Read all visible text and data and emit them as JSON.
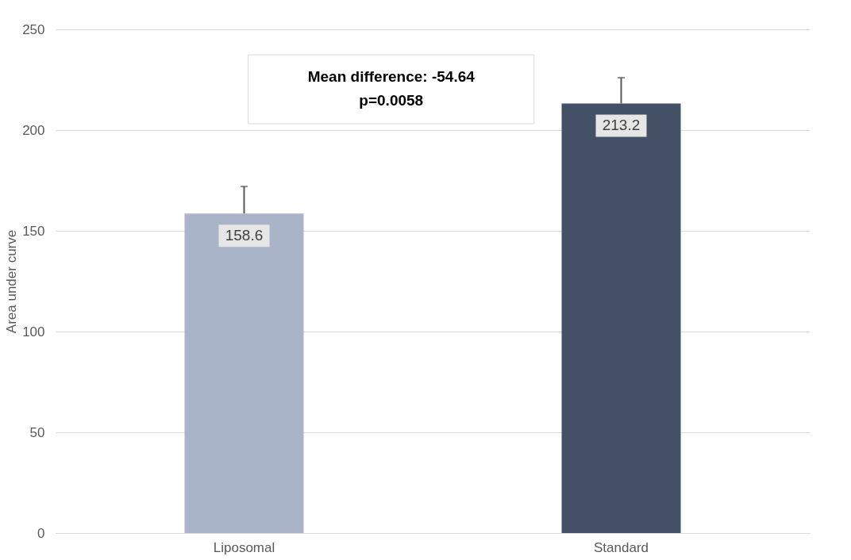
{
  "chart_data": {
    "type": "bar",
    "ylabel": "Area under curve",
    "categories": [
      "Liposomal",
      "Standard"
    ],
    "values": [
      158.6,
      213.2
    ],
    "colors": [
      "#a9b4c8",
      "#435066"
    ],
    "errors": [
      [
        158.6,
        172
      ],
      [
        213.2,
        226
      ]
    ],
    "ylim": [
      0,
      250
    ],
    "yticks": [
      0,
      50,
      100,
      150,
      200,
      250
    ],
    "grid": "y",
    "data_labels": true,
    "annotations": [
      "Mean difference: -54.64",
      "p=0.0058"
    ]
  }
}
